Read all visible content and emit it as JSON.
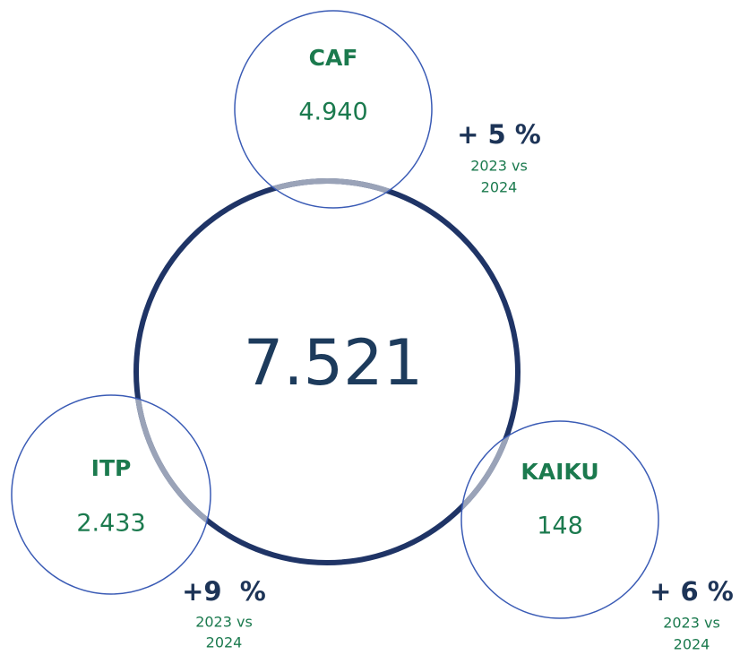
{
  "total": "7.521",
  "nodes": [
    {
      "label": "CAF",
      "value": "4.940",
      "change": "+ 5 %",
      "period": [
        "2023 vs",
        "2024"
      ]
    },
    {
      "label": "ITP",
      "value": "2.433",
      "change": "+9  %",
      "period": [
        "2023 vs",
        "2024"
      ]
    },
    {
      "label": "KAIKU",
      "value": "148",
      "change": "+ 6 %",
      "period": [
        "2023 vs",
        "2024"
      ]
    }
  ]
}
